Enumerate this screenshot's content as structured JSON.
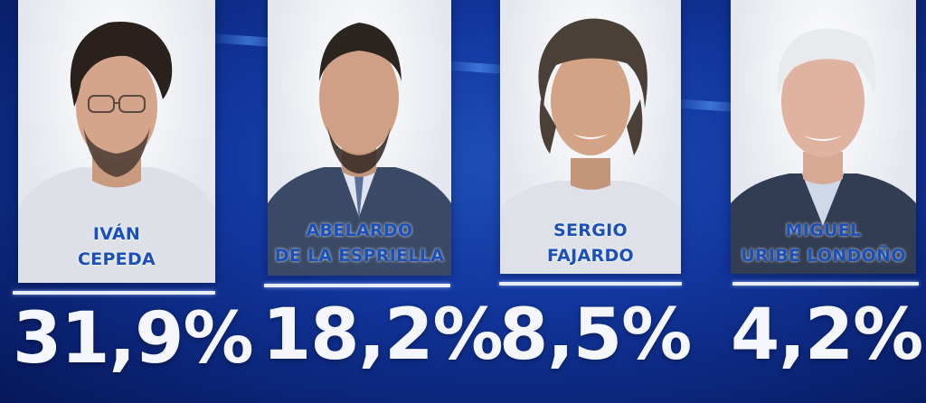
{
  "candidates": [
    {
      "name_line1": "IVÁN",
      "name_line2": "CEPEDA",
      "percent": "31,9%"
    },
    {
      "name_line1": "ABELARDO",
      "name_line2": "DE LA ESPRIELLA",
      "percent": "18,2%"
    },
    {
      "name_line1": "SERGIO",
      "name_line2": "FAJARDO",
      "percent": "8,5%"
    },
    {
      "name_line1": "MIGUEL",
      "name_line2": "URIBE LONDOÑO",
      "percent": "4,2%"
    }
  ],
  "colors": {
    "background": "#1237a0",
    "card": "#eef0f5",
    "name_text": "#1a50b8",
    "percent_text": "#f4f6fb"
  }
}
